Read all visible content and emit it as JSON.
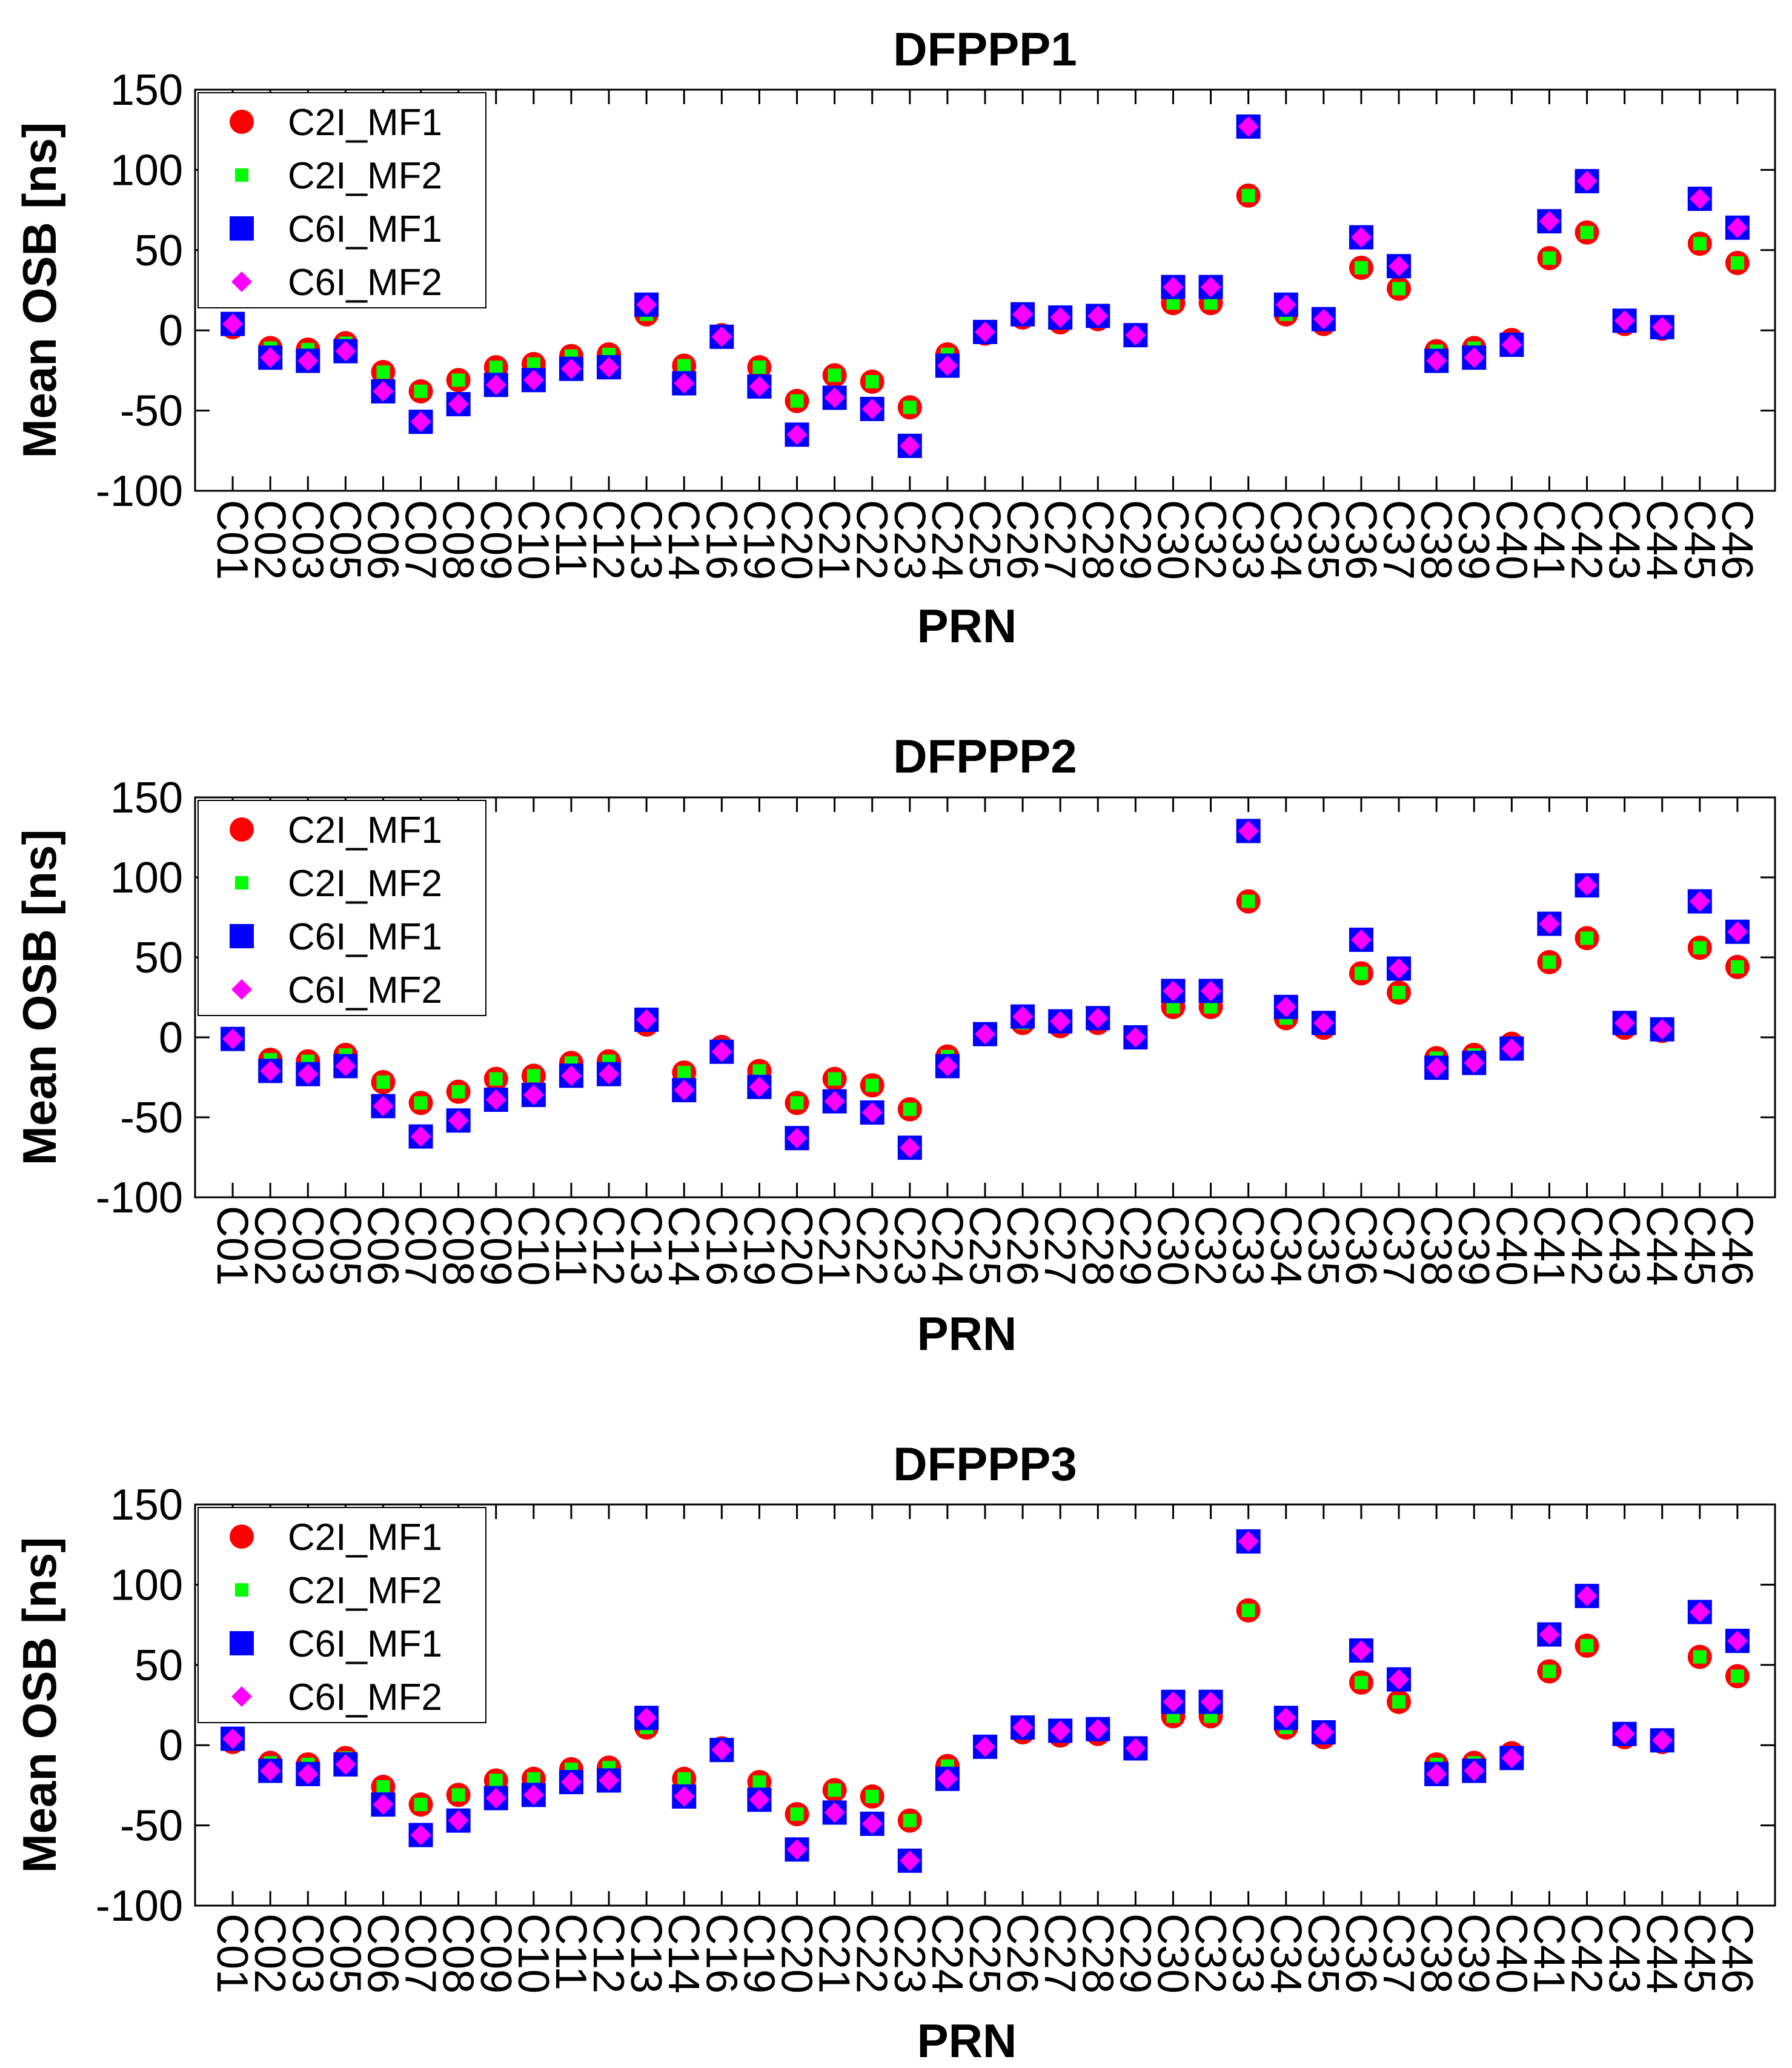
{
  "colors": {
    "C2I_MF1": "#ff0000",
    "C2I_MF2": "#00ff00",
    "C6I_MF1": "#0000ff",
    "C6I_MF2": "#ff00ff",
    "axis": "#000000",
    "background": "#ffffff"
  },
  "chart_data": [
    {
      "type": "scatter",
      "title": "DFPPP1",
      "xlabel": "PRN",
      "ylabel": "Mean OSB [ns]",
      "ylim": [
        -100,
        150
      ],
      "yticks": [
        -100,
        -50,
        0,
        50,
        100,
        150
      ],
      "grid": false,
      "legend_location": "top-left",
      "categories": [
        "C01",
        "C02",
        "C03",
        "C05",
        "C06",
        "C07",
        "C08",
        "C09",
        "C10",
        "C11",
        "C12",
        "C13",
        "C14",
        "C16",
        "C19",
        "C20",
        "C21",
        "C22",
        "C23",
        "C24",
        "C25",
        "C26",
        "C27",
        "C28",
        "C29",
        "C30",
        "C32",
        "C33",
        "C34",
        "C35",
        "C36",
        "C37",
        "C38",
        "C39",
        "C40",
        "C41",
        "C42",
        "C43",
        "C44",
        "C45",
        "C46"
      ],
      "series": [
        {
          "name": "C2I_MF1",
          "marker": "circle",
          "values": [
            2,
            -11,
            -12,
            -8,
            -26,
            -38,
            -31,
            -23,
            -21,
            -16,
            -15,
            10,
            -22,
            -3,
            -23,
            -44,
            -28,
            -32,
            -48,
            -15,
            -2,
            8,
            5,
            7,
            -3,
            17,
            17,
            84,
            10,
            4,
            39,
            26,
            -13,
            -11,
            -6,
            45,
            61,
            4,
            1,
            54,
            42
          ]
        },
        {
          "name": "C2I_MF2",
          "marker": "square-small",
          "values": [
            2,
            -11,
            -12,
            -8,
            -26,
            -38,
            -31,
            -23,
            -21,
            -16,
            -15,
            10,
            -22,
            -3,
            -23,
            -44,
            -28,
            -32,
            -48,
            -15,
            -2,
            8,
            5,
            7,
            -3,
            17,
            17,
            84,
            10,
            4,
            39,
            26,
            -13,
            -11,
            -6,
            45,
            61,
            4,
            1,
            54,
            42
          ]
        },
        {
          "name": "C6I_MF1",
          "marker": "square",
          "values": [
            4,
            -17,
            -19,
            -13,
            -38,
            -57,
            -46,
            -34,
            -31,
            -24,
            -23,
            16,
            -33,
            -4,
            -35,
            -65,
            -42,
            -49,
            -72,
            -22,
            -1,
            10,
            8,
            9,
            -3,
            27,
            27,
            127,
            16,
            7,
            58,
            40,
            -19,
            -17,
            -9,
            68,
            93,
            6,
            2,
            82,
            64
          ]
        },
        {
          "name": "C6I_MF2",
          "marker": "diamond",
          "values": [
            4,
            -17,
            -19,
            -13,
            -38,
            -57,
            -46,
            -34,
            -31,
            -24,
            -23,
            16,
            -33,
            -4,
            -35,
            -65,
            -42,
            -49,
            -72,
            -22,
            -1,
            10,
            8,
            9,
            -3,
            27,
            27,
            127,
            16,
            7,
            58,
            40,
            -19,
            -17,
            -9,
            68,
            93,
            6,
            2,
            82,
            64
          ]
        }
      ]
    },
    {
      "type": "scatter",
      "title": "DFPPP2",
      "xlabel": "PRN",
      "ylabel": "Mean OSB [ns]",
      "ylim": [
        -100,
        150
      ],
      "yticks": [
        -100,
        -50,
        0,
        50,
        100,
        150
      ],
      "grid": false,
      "legend_location": "top-left",
      "categories": [
        "C01",
        "C02",
        "C03",
        "C05",
        "C06",
        "C07",
        "C08",
        "C09",
        "C10",
        "C11",
        "C12",
        "C13",
        "C14",
        "C16",
        "C19",
        "C20",
        "C21",
        "C22",
        "C23",
        "C24",
        "C25",
        "C26",
        "C27",
        "C28",
        "C29",
        "C30",
        "C32",
        "C33",
        "C34",
        "C35",
        "C36",
        "C37",
        "C38",
        "C39",
        "C40",
        "C41",
        "C42",
        "C43",
        "C44",
        "C45",
        "C46"
      ],
      "series": [
        {
          "name": "C2I_MF1",
          "marker": "circle",
          "values": [
            -1,
            -14,
            -15,
            -11,
            -28,
            -41,
            -34,
            -26,
            -24,
            -16,
            -15,
            8,
            -22,
            -6,
            -21,
            -41,
            -26,
            -30,
            -45,
            -12,
            2,
            9,
            7,
            9,
            0,
            19,
            19,
            85,
            12,
            6,
            40,
            28,
            -13,
            -11,
            -4,
            47,
            62,
            6,
            4,
            56,
            44
          ]
        },
        {
          "name": "C2I_MF2",
          "marker": "square-small",
          "values": [
            -1,
            -14,
            -15,
            -11,
            -28,
            -41,
            -34,
            -26,
            -24,
            -16,
            -15,
            8,
            -22,
            -6,
            -21,
            -41,
            -26,
            -30,
            -45,
            -12,
            2,
            9,
            7,
            9,
            0,
            19,
            19,
            85,
            12,
            6,
            40,
            28,
            -13,
            -11,
            -4,
            47,
            62,
            6,
            4,
            56,
            44
          ]
        },
        {
          "name": "C6I_MF1",
          "marker": "square",
          "values": [
            -1,
            -21,
            -23,
            -18,
            -43,
            -62,
            -52,
            -39,
            -36,
            -24,
            -23,
            11,
            -33,
            -9,
            -31,
            -63,
            -40,
            -47,
            -69,
            -18,
            2,
            13,
            10,
            12,
            0,
            29,
            29,
            129,
            19,
            9,
            61,
            43,
            -19,
            -16,
            -7,
            71,
            95,
            9,
            5,
            85,
            66
          ]
        },
        {
          "name": "C6I_MF2",
          "marker": "diamond",
          "values": [
            -1,
            -21,
            -23,
            -18,
            -43,
            -62,
            -52,
            -39,
            -36,
            -24,
            -23,
            11,
            -33,
            -9,
            -31,
            -63,
            -40,
            -47,
            -69,
            -18,
            2,
            13,
            10,
            12,
            0,
            29,
            29,
            129,
            19,
            9,
            61,
            43,
            -19,
            -16,
            -7,
            71,
            95,
            9,
            5,
            85,
            66
          ]
        }
      ]
    },
    {
      "type": "scatter",
      "title": "DFPPP3",
      "xlabel": "PRN",
      "ylabel": "Mean OSB [ns]",
      "ylim": [
        -100,
        150
      ],
      "yticks": [
        -100,
        -50,
        0,
        50,
        100,
        150
      ],
      "grid": false,
      "legend_location": "top-left",
      "categories": [
        "C01",
        "C02",
        "C03",
        "C05",
        "C06",
        "C07",
        "C08",
        "C09",
        "C10",
        "C11",
        "C12",
        "C13",
        "C14",
        "C16",
        "C19",
        "C20",
        "C21",
        "C22",
        "C23",
        "C24",
        "C25",
        "C26",
        "C27",
        "C28",
        "C29",
        "C30",
        "C32",
        "C33",
        "C34",
        "C35",
        "C36",
        "C37",
        "C38",
        "C39",
        "C40",
        "C41",
        "C42",
        "C43",
        "C44",
        "C45",
        "C46"
      ],
      "series": [
        {
          "name": "C2I_MF1",
          "marker": "circle",
          "values": [
            2,
            -11,
            -12,
            -8,
            -26,
            -37,
            -31,
            -22,
            -21,
            -15,
            -14,
            11,
            -21,
            -2,
            -23,
            -43,
            -28,
            -32,
            -47,
            -13,
            -1,
            8,
            6,
            7,
            -2,
            18,
            18,
            84,
            11,
            5,
            39,
            27,
            -12,
            -11,
            -5,
            46,
            62,
            5,
            2,
            55,
            43
          ]
        },
        {
          "name": "C2I_MF2",
          "marker": "square-small",
          "values": [
            2,
            -11,
            -12,
            -8,
            -26,
            -37,
            -31,
            -22,
            -21,
            -15,
            -14,
            11,
            -21,
            -2,
            -23,
            -43,
            -28,
            -32,
            -47,
            -13,
            -1,
            8,
            6,
            7,
            -2,
            18,
            18,
            84,
            11,
            5,
            39,
            27,
            -12,
            -11,
            -5,
            46,
            62,
            5,
            2,
            55,
            43
          ]
        },
        {
          "name": "C6I_MF1",
          "marker": "square",
          "values": [
            4,
            -16,
            -18,
            -12,
            -37,
            -56,
            -47,
            -33,
            -31,
            -23,
            -22,
            17,
            -32,
            -3,
            -34,
            -65,
            -42,
            -49,
            -72,
            -21,
            -1,
            11,
            9,
            10,
            -2,
            27,
            27,
            127,
            17,
            8,
            59,
            41,
            -18,
            -16,
            -8,
            69,
            93,
            7,
            3,
            83,
            65
          ]
        },
        {
          "name": "C6I_MF2",
          "marker": "diamond",
          "values": [
            4,
            -16,
            -18,
            -12,
            -37,
            -56,
            -47,
            -33,
            -31,
            -23,
            -22,
            17,
            -32,
            -3,
            -34,
            -65,
            -42,
            -49,
            -72,
            -21,
            -1,
            11,
            9,
            10,
            -2,
            27,
            27,
            127,
            17,
            8,
            59,
            41,
            -18,
            -16,
            -8,
            69,
            93,
            7,
            3,
            83,
            65
          ]
        }
      ]
    }
  ]
}
